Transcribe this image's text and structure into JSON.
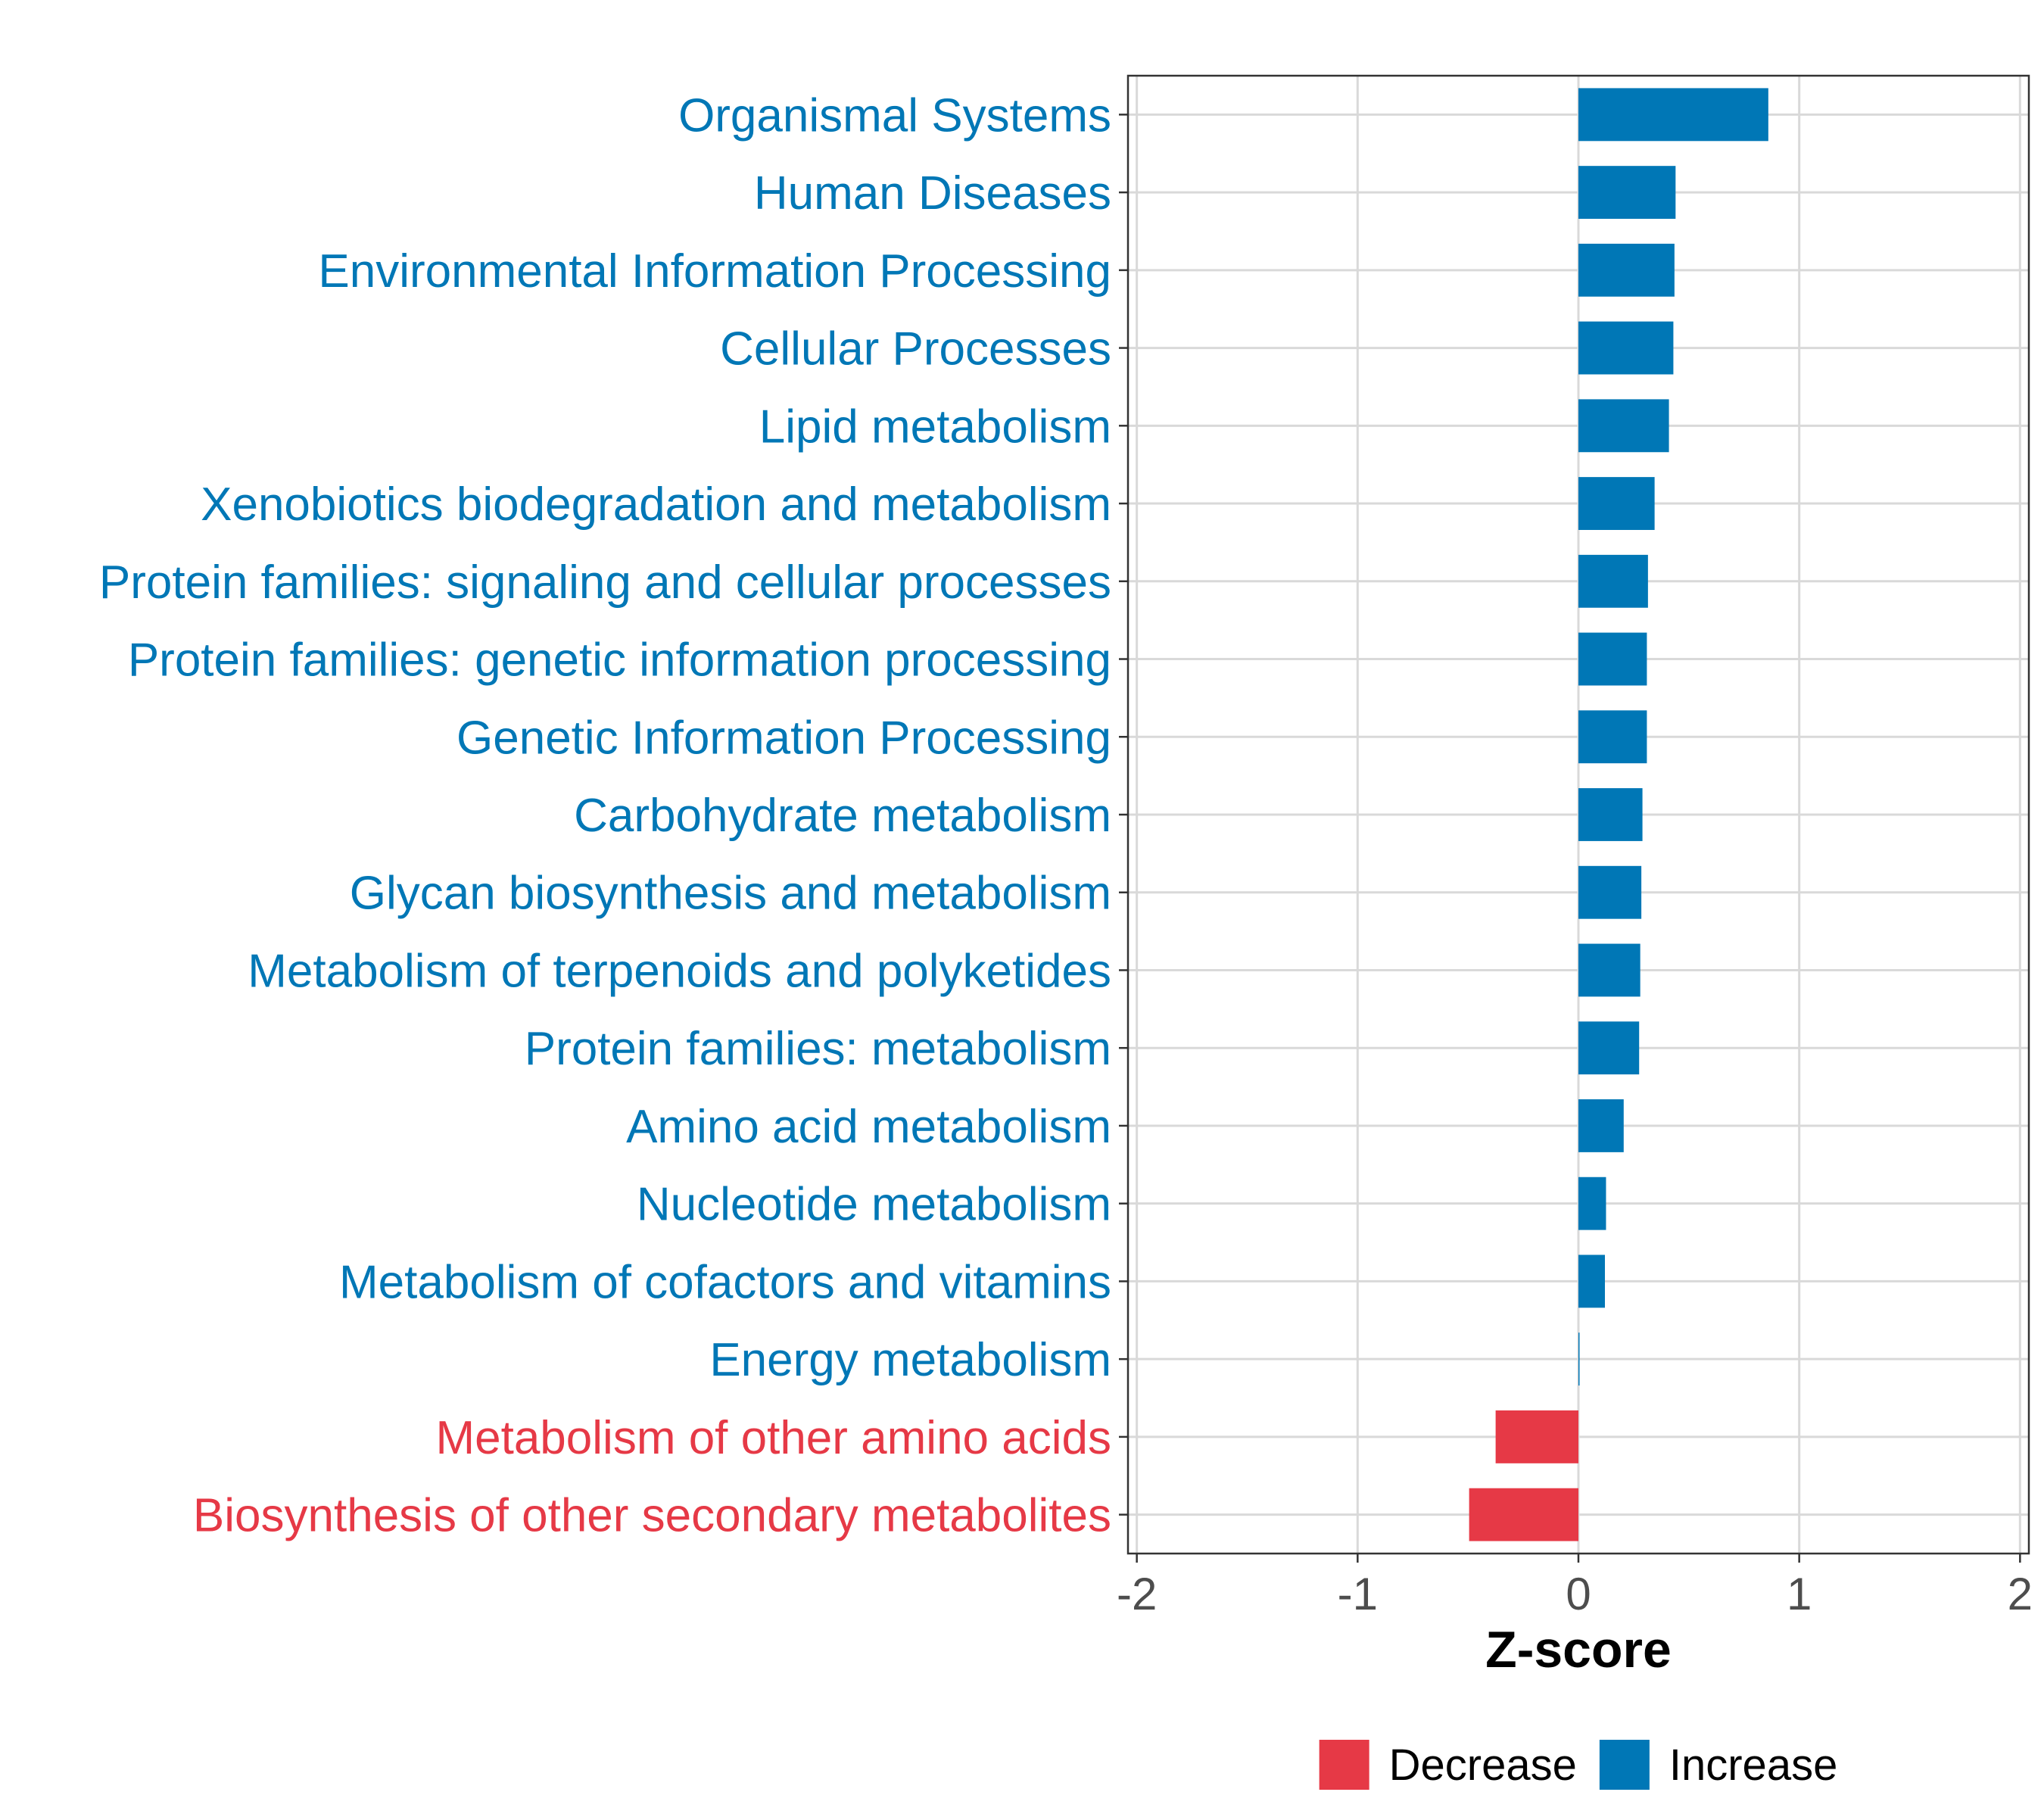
{
  "chart_data": {
    "type": "bar",
    "orientation": "horizontal",
    "title": "",
    "xlabel": "Z-score",
    "ylabel": "",
    "xlim": [
      -2.04,
      2.04
    ],
    "xticks": [
      -2,
      -1,
      0,
      1,
      2
    ],
    "xtick_labels": [
      "-2",
      "-1",
      "0",
      "1",
      "2"
    ],
    "grid": true,
    "legend_position": "bottom",
    "colors": {
      "Decrease": "#e63946",
      "Increase": "#0077b6"
    },
    "legend": [
      {
        "key": "Decrease",
        "label": "Decrease"
      },
      {
        "key": "Increase",
        "label": "Increase"
      }
    ],
    "categories": [
      "Organismal Systems",
      "Human Diseases",
      "Environmental Information Processing",
      "Cellular Processes",
      "Lipid metabolism",
      "Xenobiotics biodegradation and metabolism",
      "Protein families: signaling and cellular processes",
      "Protein families: genetic information processing",
      "Genetic Information Processing",
      "Carbohydrate metabolism",
      "Glycan biosynthesis and metabolism",
      "Metabolism of terpenoids and polyketides",
      "Protein families: metabolism",
      "Amino acid metabolism",
      "Nucleotide metabolism",
      "Metabolism of cofactors and vitamins",
      "Energy metabolism",
      "Metabolism of other amino acids",
      "Biosynthesis of other secondary metabolites"
    ],
    "values": [
      0.86,
      0.44,
      0.435,
      0.43,
      0.41,
      0.345,
      0.315,
      0.31,
      0.31,
      0.29,
      0.285,
      0.28,
      0.275,
      0.205,
      0.125,
      0.12,
      0.005,
      -0.375,
      -0.495
    ],
    "groups": [
      "Increase",
      "Increase",
      "Increase",
      "Increase",
      "Increase",
      "Increase",
      "Increase",
      "Increase",
      "Increase",
      "Increase",
      "Increase",
      "Increase",
      "Increase",
      "Increase",
      "Increase",
      "Increase",
      "Increase",
      "Decrease",
      "Decrease"
    ]
  }
}
